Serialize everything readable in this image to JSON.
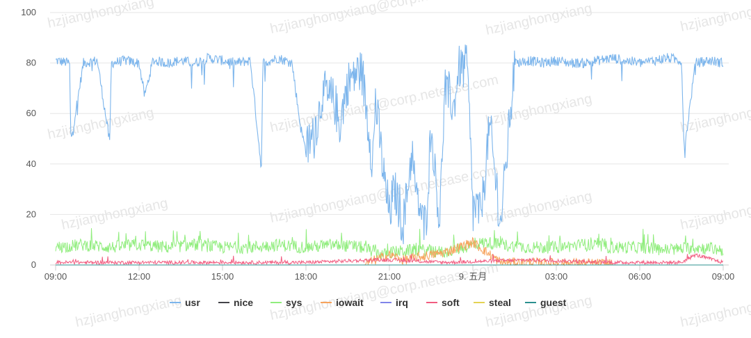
{
  "chart_data": {
    "type": "line",
    "title": "",
    "xlabel": "",
    "ylabel": "",
    "ylim": [
      0,
      100
    ],
    "grid": true,
    "legend_position": "bottom",
    "y_ticks": [
      "0",
      "20",
      "40",
      "60",
      "80",
      "100"
    ],
    "x_tick_labels": [
      "09:00",
      "12:00",
      "15:00",
      "18:00",
      "21:00",
      "9. 五月",
      "03:00",
      "06:00",
      "09:00"
    ],
    "x_range_hours": [
      0,
      24
    ],
    "series": [
      {
        "name": "usr",
        "color": "#7cb5ec",
        "x": [
          0,
          0.5,
          0.55,
          1,
          1.5,
          1.95,
          2,
          2.5,
          3,
          3.2,
          3.5,
          4,
          4.5,
          5,
          5.5,
          6,
          6.5,
          7,
          7.4,
          7.45,
          8,
          8.5,
          8.8,
          9,
          9.3,
          9.6,
          10,
          10.2,
          10.5,
          11,
          11.4,
          11.5,
          11.8,
          12,
          12.2,
          12.5,
          12.8,
          13,
          13.3,
          13.5,
          13.8,
          14,
          14.3,
          14.5,
          14.8,
          15,
          15.3,
          15.6,
          16,
          16.5,
          17,
          17.5,
          18,
          18.5,
          19,
          19.5,
          20,
          20.5,
          21,
          21.5,
          22,
          22.5,
          22.6,
          23,
          23.5,
          24
        ],
        "values": [
          81,
          80,
          49,
          80,
          81,
          48,
          80,
          81,
          80,
          67,
          81,
          80,
          81,
          80,
          82,
          81,
          80,
          81,
          38,
          80,
          82,
          80,
          55,
          45,
          52,
          68,
          65,
          55,
          72,
          78,
          40,
          66,
          35,
          20,
          30,
          16,
          45,
          25,
          15,
          55,
          18,
          70,
          62,
          78,
          80,
          22,
          21,
          55,
          16,
          80,
          81,
          80,
          81,
          80,
          80,
          81,
          82,
          81,
          80,
          81,
          82,
          81,
          45,
          80,
          81,
          80
        ]
      },
      {
        "name": "nice",
        "color": "#434348",
        "x": [
          0,
          24
        ],
        "values": [
          0,
          0
        ]
      },
      {
        "name": "sys",
        "color": "#90ed7d",
        "x": [
          0,
          1,
          2,
          3,
          4,
          5,
          6,
          7,
          8,
          9,
          10,
          11,
          11.8,
          12,
          13,
          14,
          15,
          15.5,
          16,
          17,
          18,
          19,
          20,
          21,
          22,
          23,
          24
        ],
        "values": [
          7,
          8,
          7,
          8,
          7,
          8,
          7,
          7,
          8,
          7,
          8,
          7,
          4,
          5,
          6,
          5,
          8,
          9,
          8,
          7,
          7,
          8,
          7,
          7,
          6,
          7,
          6
        ]
      },
      {
        "name": "iowait",
        "color": "#f7a35c",
        "x": [
          0,
          11,
          12,
          12.5,
          13,
          14,
          15,
          16,
          24
        ],
        "values": [
          0,
          0,
          4,
          2,
          3,
          5,
          9,
          1,
          0
        ]
      },
      {
        "name": "irq",
        "color": "#8085e9",
        "x": [
          0,
          24
        ],
        "values": [
          0,
          0
        ]
      },
      {
        "name": "soft",
        "color": "#f15c80",
        "x": [
          0,
          3,
          6,
          9,
          11.5,
          12,
          14,
          17,
          20,
          22.5,
          23,
          24
        ],
        "values": [
          1,
          1,
          1,
          1,
          2,
          2,
          1,
          2,
          1,
          1,
          4,
          1
        ]
      },
      {
        "name": "steal",
        "color": "#e4d354",
        "x": [
          0,
          24
        ],
        "values": [
          0,
          0
        ]
      },
      {
        "name": "guest",
        "color": "#2b908f",
        "x": [
          0,
          24
        ],
        "values": [
          0,
          0
        ]
      }
    ]
  },
  "watermark": {
    "text": "hzjianghongxiang",
    "email": "hzjianghongxiang@corp.netease.com"
  }
}
